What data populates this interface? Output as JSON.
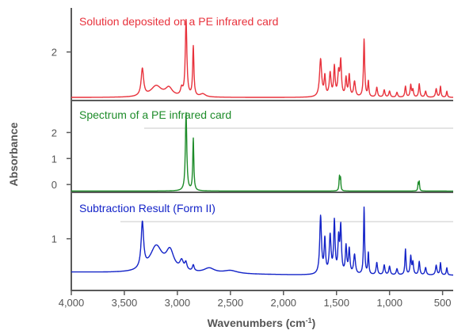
{
  "chart_data": {
    "type": "line",
    "xlabel": "Wavenumbers (cm",
    "xlabel_sup": "-1",
    "xlabel_end": ")",
    "ylabel": "Absorbance",
    "xlim": [
      4000,
      400
    ],
    "x_ticks": [
      {
        "value": 4000,
        "label": "4,000"
      },
      {
        "value": 3500,
        "label": "3,500"
      },
      {
        "value": 3000,
        "label": "3,000"
      },
      {
        "value": 2500,
        "label": "2,500"
      },
      {
        "value": 2000,
        "label": "2,000"
      },
      {
        "value": 1500,
        "label": "1,500"
      },
      {
        "value": 1000,
        "label": "1,000"
      },
      {
        "value": 500,
        "label": "500"
      }
    ],
    "panels": [
      {
        "name": "Solution deposited on a PE infrared card",
        "color": "#e8323c",
        "ylim": [
          1.2,
          2.7
        ],
        "y_ticks": [
          {
            "value": 2,
            "label": "2"
          }
        ],
        "baseline": 1.25,
        "peaks": [
          [
            3330,
            0.45,
            14
          ],
          [
            3200,
            0.18,
            60
          ],
          [
            3080,
            0.14,
            40
          ],
          [
            2960,
            0.12,
            12
          ],
          [
            2918,
            1.25,
            9
          ],
          [
            2850,
            0.82,
            7
          ],
          [
            2760,
            0.05,
            30
          ],
          [
            1650,
            0.62,
            12
          ],
          [
            1610,
            0.32,
            8
          ],
          [
            1560,
            0.38,
            10
          ],
          [
            1520,
            0.48,
            8
          ],
          [
            1480,
            0.38,
            10
          ],
          [
            1460,
            0.55,
            8
          ],
          [
            1410,
            0.3,
            8
          ],
          [
            1380,
            0.35,
            8
          ],
          [
            1330,
            0.25,
            10
          ],
          [
            1240,
            0.95,
            7
          ],
          [
            1200,
            0.25,
            6
          ],
          [
            1120,
            0.16,
            8
          ],
          [
            1050,
            0.12,
            8
          ],
          [
            1000,
            0.1,
            8
          ],
          [
            930,
            0.08,
            8
          ],
          [
            850,
            0.18,
            7
          ],
          [
            800,
            0.2,
            7
          ],
          [
            780,
            0.12,
            7
          ],
          [
            720,
            0.22,
            7
          ],
          [
            660,
            0.1,
            8
          ],
          [
            560,
            0.14,
            8
          ],
          [
            520,
            0.18,
            6
          ],
          [
            460,
            0.1,
            6
          ]
        ]
      },
      {
        "name": "Spectrum of a PE infrared card",
        "color": "#1e8c2a",
        "ylim": [
          -0.3,
          3.2
        ],
        "y_ticks": [
          {
            "value": 2,
            "label": "2"
          },
          {
            "value": 1,
            "label": "1"
          },
          {
            "value": 0,
            "label": "0"
          }
        ],
        "baseline": -0.25,
        "peaks": [
          [
            2918,
            3.0,
            8
          ],
          [
            2850,
            2.0,
            6
          ],
          [
            1472,
            0.55,
            5
          ],
          [
            1462,
            0.45,
            4
          ],
          [
            730,
            0.3,
            4
          ],
          [
            720,
            0.35,
            4
          ]
        ]
      },
      {
        "name": "Subtraction Result (Form II)",
        "color": "#1424c8",
        "ylim": [
          0.15,
          1.75
        ],
        "y_ticks": [
          {
            "value": 1,
            "label": "1"
          }
        ],
        "baseline": 0.4,
        "peaks": [
          [
            3330,
            0.75,
            14
          ],
          [
            3200,
            0.42,
            70
          ],
          [
            3070,
            0.32,
            45
          ],
          [
            2960,
            0.15,
            20
          ],
          [
            2920,
            0.12,
            12
          ],
          [
            2850,
            0.1,
            10
          ],
          [
            2700,
            0.08,
            60
          ],
          [
            2500,
            0.05,
            80
          ],
          [
            1650,
            0.95,
            10
          ],
          [
            1610,
            0.55,
            8
          ],
          [
            1560,
            0.62,
            10
          ],
          [
            1520,
            0.85,
            8
          ],
          [
            1480,
            0.55,
            8
          ],
          [
            1460,
            0.75,
            8
          ],
          [
            1410,
            0.45,
            8
          ],
          [
            1380,
            0.4,
            8
          ],
          [
            1330,
            0.32,
            10
          ],
          [
            1240,
            1.1,
            6
          ],
          [
            1200,
            0.35,
            6
          ],
          [
            1120,
            0.2,
            8
          ],
          [
            1050,
            0.16,
            8
          ],
          [
            1000,
            0.14,
            8
          ],
          [
            930,
            0.1,
            8
          ],
          [
            850,
            0.42,
            6
          ],
          [
            800,
            0.3,
            7
          ],
          [
            780,
            0.2,
            7
          ],
          [
            720,
            0.22,
            7
          ],
          [
            660,
            0.12,
            8
          ],
          [
            560,
            0.16,
            8
          ],
          [
            520,
            0.2,
            6
          ],
          [
            460,
            0.12,
            6
          ]
        ]
      }
    ]
  }
}
